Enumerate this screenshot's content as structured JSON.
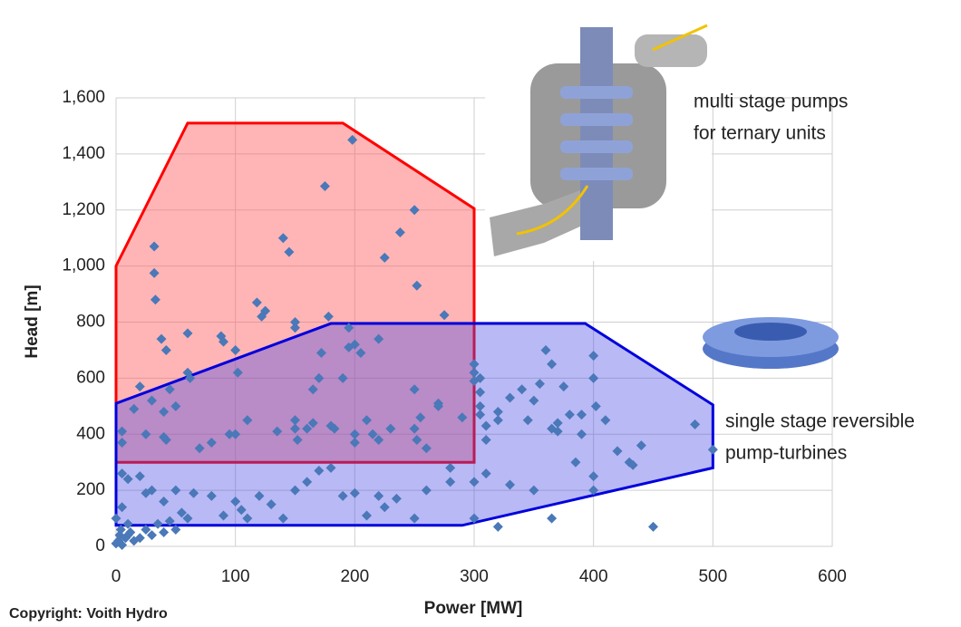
{
  "chart_data": {
    "type": "scatter",
    "xlabel": "Power [MW]",
    "ylabel": "Head [m]",
    "source": "Copyright: Voith Hydro",
    "color": "#4a78b8",
    "xlim": [
      0,
      600
    ],
    "ylim": [
      0,
      1600
    ],
    "xticks": [
      0,
      100,
      200,
      300,
      400,
      500,
      600
    ],
    "yticks": [
      0,
      200,
      400,
      600,
      800,
      {
        "value": 1000,
        "label": "1,000"
      },
      {
        "value": 1200,
        "label": "1,200"
      },
      {
        "value": 1400,
        "label": "1,400"
      },
      {
        "value": 1600,
        "label": "1,600"
      }
    ],
    "grid": true,
    "annotations": [
      {
        "lines": [
          "multi stage pumps",
          "for ternary units"
        ],
        "color": "#ff0000",
        "fill": "rgba(255,90,90,0.45)",
        "region_x": [
          0,
          60,
          190,
          300,
          300,
          0
        ],
        "region_y": [
          1000,
          1510,
          1510,
          1205,
          300,
          300
        ]
      },
      {
        "lines": [
          "single stage reversible",
          "pump-turbines"
        ],
        "color": "#0000dd",
        "fill": "rgba(70,70,230,0.38)",
        "region_x": [
          0,
          290,
          500,
          500,
          393,
          180,
          0
        ],
        "region_y": [
          75,
          75,
          280,
          505,
          795,
          795,
          510
        ]
      }
    ],
    "x": [
      198,
      175,
      250,
      238,
      140,
      145,
      225,
      32,
      32,
      33,
      118,
      125,
      122,
      178,
      275,
      252,
      150,
      150,
      195,
      200,
      195,
      205,
      172,
      220,
      60,
      88,
      90,
      38,
      42,
      100,
      102,
      60,
      62,
      170,
      190,
      165,
      250,
      270,
      270,
      290,
      300,
      300,
      300,
      20,
      30,
      45,
      50,
      40,
      15,
      5,
      5,
      25,
      40,
      42,
      70,
      80,
      95,
      100,
      110,
      135,
      150,
      150,
      152,
      160,
      165,
      180,
      183,
      200,
      200,
      210,
      215,
      220,
      230,
      250,
      252,
      255,
      260,
      305,
      305,
      305,
      305,
      310,
      310,
      320,
      330,
      340,
      345,
      350,
      355,
      360,
      365,
      375,
      380,
      370,
      390,
      400,
      400,
      402,
      410,
      440,
      420,
      430,
      433,
      485,
      500,
      370,
      390,
      385,
      400,
      350,
      330,
      365,
      320,
      5,
      10,
      20,
      25,
      30,
      40,
      50,
      55,
      60,
      65,
      80,
      90,
      100,
      105,
      110,
      120,
      130,
      140,
      150,
      160,
      170,
      180,
      190,
      200,
      210,
      220,
      225,
      235,
      250,
      260,
      280,
      300,
      310,
      320,
      365,
      450,
      400,
      280,
      300,
      0,
      2,
      3,
      5,
      4,
      8,
      10,
      12,
      15,
      20,
      25,
      30,
      35,
      40,
      45,
      50,
      5,
      0,
      10
    ],
    "values": [
      1450,
      1285,
      1200,
      1120,
      1100,
      1050,
      1030,
      1070,
      975,
      880,
      870,
      840,
      820,
      820,
      825,
      930,
      800,
      780,
      780,
      720,
      710,
      690,
      690,
      740,
      760,
      750,
      730,
      740,
      700,
      700,
      620,
      620,
      600,
      600,
      600,
      560,
      560,
      510,
      500,
      460,
      650,
      620,
      590,
      570,
      520,
      560,
      500,
      480,
      490,
      410,
      370,
      400,
      390,
      380,
      350,
      370,
      400,
      400,
      450,
      410,
      450,
      420,
      380,
      420,
      440,
      430,
      420,
      370,
      400,
      450,
      400,
      380,
      420,
      420,
      380,
      460,
      350,
      600,
      550,
      500,
      470,
      430,
      380,
      480,
      530,
      560,
      450,
      520,
      580,
      700,
      650,
      570,
      470,
      440,
      470,
      680,
      600,
      500,
      450,
      360,
      340,
      300,
      290,
      435,
      345,
      410,
      400,
      300,
      250,
      200,
      220,
      420,
      450,
      260,
      240,
      250,
      190,
      200,
      160,
      200,
      120,
      100,
      190,
      180,
      110,
      160,
      130,
      100,
      180,
      150,
      100,
      200,
      230,
      270,
      280,
      180,
      190,
      110,
      180,
      140,
      170,
      100,
      200,
      280,
      100,
      260,
      70,
      100,
      70,
      200,
      230,
      230,
      10,
      20,
      40,
      5,
      60,
      30,
      40,
      50,
      20,
      30,
      60,
      40,
      80,
      50,
      90,
      60,
      140,
      100,
      80
    ]
  }
}
